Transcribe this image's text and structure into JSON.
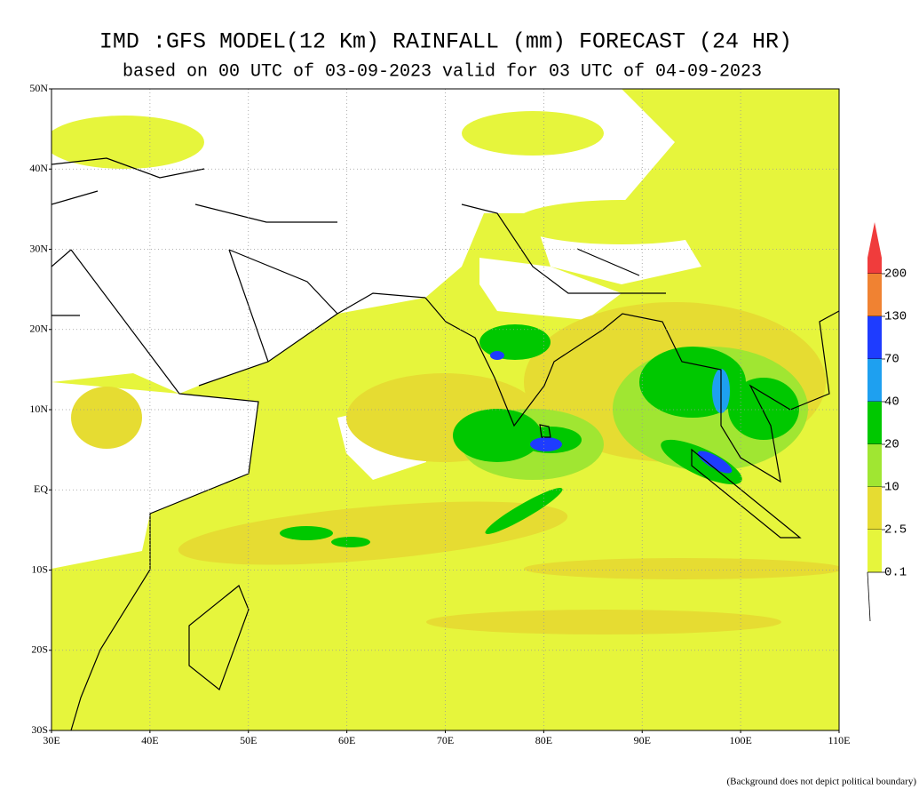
{
  "header": {
    "title": "IMD :GFS MODEL(12 Km) RAINFALL (mm) FORECAST (24 HR)",
    "subtitle": "based on 00 UTC of 03-09-2023 valid for 03 UTC of 04-09-2023"
  },
  "map": {
    "lat_labels": [
      "50N",
      "40N",
      "30N",
      "20N",
      "10N",
      "EQ",
      "10S",
      "20S",
      "30S"
    ],
    "lon_labels": [
      "30E",
      "40E",
      "50E",
      "60E",
      "70E",
      "80E",
      "90E",
      "100E",
      "110E"
    ]
  },
  "legend": {
    "levels": [
      {
        "label": "200",
        "color": "#f03c3c"
      },
      {
        "label": "130",
        "color": "#f08232"
      },
      {
        "label": "70",
        "color": "#1e3cff"
      },
      {
        "label": "40",
        "color": "#1ea0f0"
      },
      {
        "label": "20",
        "color": "#00c800"
      },
      {
        "label": "10",
        "color": "#a0e632"
      },
      {
        "label": "2.5",
        "color": "#e6dc32"
      },
      {
        "label": "0.1",
        "color": "#e6f53c"
      }
    ]
  },
  "footnote": "(Background does not depict political boundary)"
}
